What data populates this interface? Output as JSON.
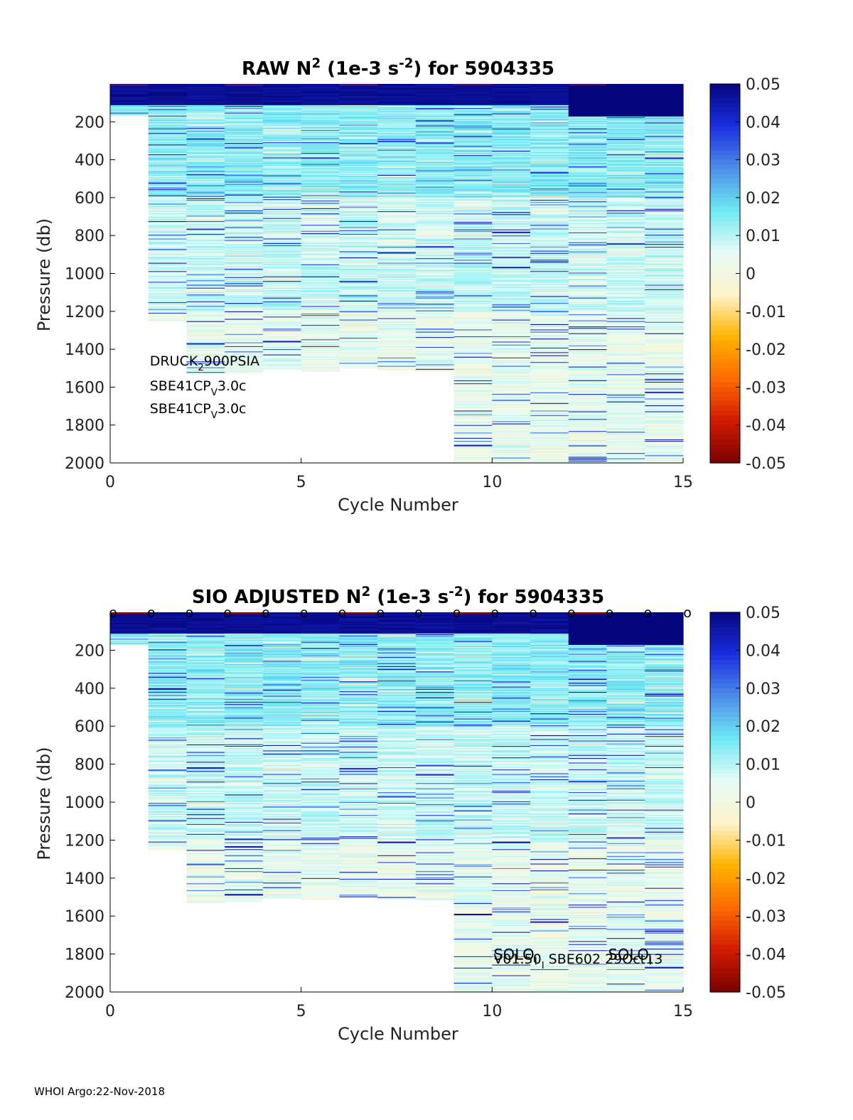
{
  "footer": "WHOI Argo:22-Nov-2018",
  "chart_data": [
    {
      "type": "heatmap",
      "title": {
        "parts": [
          {
            "text": "RAW N",
            "style": "normal"
          },
          {
            "text": "2",
            "style": "sup"
          },
          {
            "text": " (1e-3 s",
            "style": "normal"
          },
          {
            "text": "-2",
            "style": "sup"
          },
          {
            "text": ") for 5904335",
            "style": "normal"
          }
        ]
      },
      "xlabel": "Cycle Number",
      "ylabel": "Pressure (db)",
      "xlim": [
        0,
        15
      ],
      "ylim": [
        2000,
        0
      ],
      "y_reversed": true,
      "xticks": [
        "0",
        "5",
        "10",
        "15"
      ],
      "yticks": [
        "200",
        "400",
        "600",
        "800",
        "1000",
        "1200",
        "1400",
        "1600",
        "1800",
        "2000"
      ],
      "colorbar": {
        "clim": [
          -0.05,
          0.05
        ],
        "ticks": [
          "0.05",
          "0.04",
          "0.03",
          "0.02",
          "0.01",
          "0",
          "-0.01",
          "-0.02",
          "-0.03",
          "-0.04",
          "-0.05"
        ],
        "colormap": [
          "#7a0000",
          "#d11b00",
          "#ff6a00",
          "#ffb400",
          "#fff4cc",
          "#e6fbf6",
          "#6ee9f2",
          "#4d8de8",
          "#1a2ee0",
          "#06067e"
        ]
      },
      "cycles": [
        {
          "x0": 0,
          "x1": 1,
          "max_pressure": 170
        },
        {
          "x0": 1,
          "x1": 2,
          "max_pressure": 1250
        },
        {
          "x0": 2,
          "x1": 3,
          "max_pressure": 1530
        },
        {
          "x0": 3,
          "x1": 4,
          "max_pressure": 1525
        },
        {
          "x0": 4,
          "x1": 5,
          "max_pressure": 1505
        },
        {
          "x0": 5,
          "x1": 6,
          "max_pressure": 1515
        },
        {
          "x0": 6,
          "x1": 7,
          "max_pressure": 1500
        },
        {
          "x0": 7,
          "x1": 8,
          "max_pressure": 1510
        },
        {
          "x0": 8,
          "x1": 9,
          "max_pressure": 1515
        },
        {
          "x0": 9,
          "x1": 10,
          "max_pressure": 2000
        },
        {
          "x0": 10,
          "x1": 11,
          "max_pressure": 2000
        },
        {
          "x0": 11,
          "x1": 12,
          "max_pressure": 2000
        },
        {
          "x0": 12,
          "x1": 13,
          "max_pressure": 2000
        },
        {
          "x0": 13,
          "x1": 14,
          "max_pressure": 2000
        },
        {
          "x0": 14,
          "x1": 15,
          "max_pressure": 2000
        }
      ],
      "annotations": [
        {
          "parts": [
            {
              "text": "DRUCK",
              "style": "normal"
            },
            {
              "text": "2",
              "style": "sub"
            },
            {
              "text": "900PSIA",
              "style": "normal"
            }
          ],
          "x": 1,
          "y": 1470
        },
        {
          "parts": [
            {
              "text": "SBE41CP",
              "style": "normal"
            },
            {
              "text": "V",
              "style": "sub"
            },
            {
              "text": "3.0c",
              "style": "normal"
            }
          ],
          "x": 1,
          "y": 1720
        },
        {
          "parts": [
            {
              "text": "SBE41CP",
              "style": "normal"
            },
            {
              "text": "V",
              "style": "sub"
            },
            {
              "text": "3.0c",
              "style": "normal"
            }
          ],
          "x": 1,
          "y": 1720
        }
      ]
    },
    {
      "type": "heatmap",
      "title": {
        "parts": [
          {
            "text": "SIO  ADJUSTED N",
            "style": "normal"
          },
          {
            "text": "2",
            "style": "sup"
          },
          {
            "text": " (1e-3 s",
            "style": "normal"
          },
          {
            "text": "-2",
            "style": "sup"
          },
          {
            "text": ") for 5904335",
            "style": "normal"
          }
        ]
      },
      "xlabel": "Cycle Number",
      "ylabel": "Pressure (db)",
      "xlim": [
        0,
        15
      ],
      "ylim": [
        2000,
        0
      ],
      "y_reversed": true,
      "xticks": [
        "0",
        "5",
        "10",
        "15"
      ],
      "yticks": [
        "200",
        "400",
        "600",
        "800",
        "1000",
        "1200",
        "1400",
        "1600",
        "1800",
        "2000"
      ],
      "colorbar": {
        "clim": [
          -0.05,
          0.05
        ],
        "ticks": [
          "0.05",
          "0.04",
          "0.03",
          "0.02",
          "0.01",
          "0",
          "-0.01",
          "-0.02",
          "-0.03",
          "-0.04",
          "-0.05"
        ],
        "colormap": [
          "#7a0000",
          "#d11b00",
          "#ff6a00",
          "#ffb400",
          "#fff4cc",
          "#e6fbf6",
          "#6ee9f2",
          "#4d8de8",
          "#1a2ee0",
          "#06067e"
        ]
      },
      "top_markers": {
        "text": "o",
        "x": [
          0,
          1,
          2,
          3,
          4,
          5,
          6,
          7,
          8,
          9,
          10,
          11,
          12,
          13,
          14,
          15
        ]
      },
      "cycles": [
        {
          "x0": 0,
          "x1": 1,
          "max_pressure": 170
        },
        {
          "x0": 1,
          "x1": 2,
          "max_pressure": 1250
        },
        {
          "x0": 2,
          "x1": 3,
          "max_pressure": 1530
        },
        {
          "x0": 3,
          "x1": 4,
          "max_pressure": 1525
        },
        {
          "x0": 4,
          "x1": 5,
          "max_pressure": 1505
        },
        {
          "x0": 5,
          "x1": 6,
          "max_pressure": 1515
        },
        {
          "x0": 6,
          "x1": 7,
          "max_pressure": 1500
        },
        {
          "x0": 7,
          "x1": 8,
          "max_pressure": 1510
        },
        {
          "x0": 8,
          "x1": 9,
          "max_pressure": 1515
        },
        {
          "x0": 9,
          "x1": 10,
          "max_pressure": 2000
        },
        {
          "x0": 10,
          "x1": 11,
          "max_pressure": 2000
        },
        {
          "x0": 11,
          "x1": 12,
          "max_pressure": 2000
        },
        {
          "x0": 12,
          "x1": 13,
          "max_pressure": 2000
        },
        {
          "x0": 13,
          "x1": 14,
          "max_pressure": 2000
        },
        {
          "x0": 14,
          "x1": 15,
          "max_pressure": 2000
        }
      ],
      "annotations": [
        {
          "parts": [
            {
              "text": "SOLO",
              "style": "normal"
            },
            {
              "text": "I",
              "style": "sub"
            }
          ],
          "x": 10,
          "y": 1830,
          "size": 21
        },
        {
          "parts": [
            {
              "text": "SOLO",
              "style": "normal"
            },
            {
              "text": "I",
              "style": "sub"
            }
          ],
          "x": 13,
          "y": 1830,
          "size": 21
        },
        {
          "parts": [
            {
              "text": "V01.50",
              "style": "normal"
            },
            {
              "text": "I",
              "style": "sub"
            },
            {
              "text": " SBE602 29Oct13",
              "style": "normal"
            }
          ],
          "x": 10,
          "y": 1850,
          "size": 19
        }
      ]
    }
  ]
}
